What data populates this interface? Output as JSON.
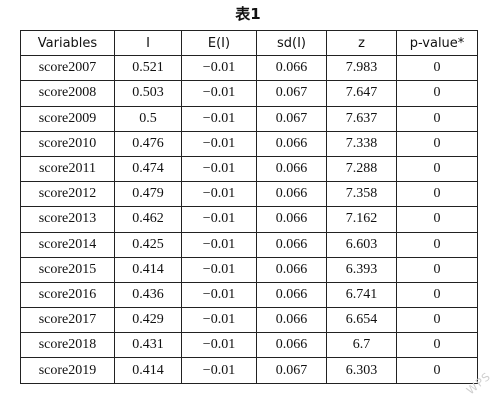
{
  "caption": "表1",
  "headers": [
    "Variables",
    "I",
    "E(I)",
    "sd(I)",
    "z",
    "p-value*"
  ],
  "rows": [
    [
      "score2007",
      "0.521",
      "−0.01",
      "0.066",
      "7.983",
      "0"
    ],
    [
      "score2008",
      "0.503",
      "−0.01",
      "0.067",
      "7.647",
      "0"
    ],
    [
      "score2009",
      "0.5",
      "−0.01",
      "0.067",
      "7.637",
      "0"
    ],
    [
      "score2010",
      "0.476",
      "−0.01",
      "0.066",
      "7.338",
      "0"
    ],
    [
      "score2011",
      "0.474",
      "−0.01",
      "0.066",
      "7.288",
      "0"
    ],
    [
      "score2012",
      "0.479",
      "−0.01",
      "0.066",
      "7.358",
      "0"
    ],
    [
      "score2013",
      "0.462",
      "−0.01",
      "0.066",
      "7.162",
      "0"
    ],
    [
      "score2014",
      "0.425",
      "−0.01",
      "0.066",
      "6.603",
      "0"
    ],
    [
      "score2015",
      "0.414",
      "−0.01",
      "0.066",
      "6.393",
      "0"
    ],
    [
      "score2016",
      "0.436",
      "−0.01",
      "0.066",
      "6.741",
      "0"
    ],
    [
      "score2017",
      "0.429",
      "−0.01",
      "0.066",
      "6.654",
      "0"
    ],
    [
      "score2018",
      "0.431",
      "−0.01",
      "0.066",
      "6.7",
      "0"
    ],
    [
      "score2019",
      "0.414",
      "−0.01",
      "0.067",
      "6.303",
      "0"
    ]
  ],
  "watermark": "WPS"
}
